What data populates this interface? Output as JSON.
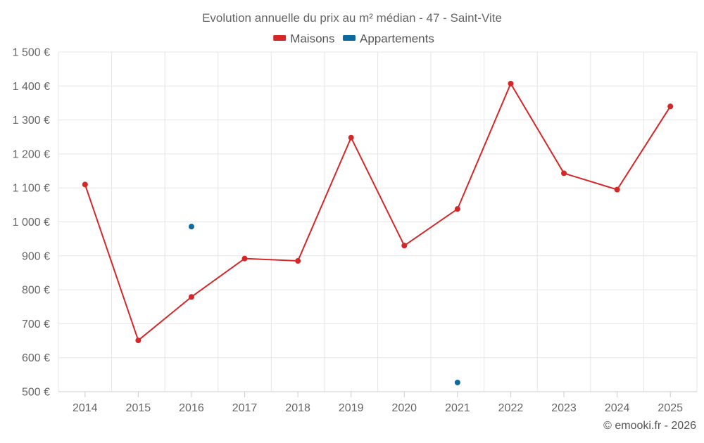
{
  "chart_data": {
    "type": "line",
    "title": "Evolution annuelle du prix au m² médian - 47 - Saint-Vite",
    "categories": [
      "2014",
      "2015",
      "2016",
      "2017",
      "2018",
      "2019",
      "2020",
      "2021",
      "2022",
      "2023",
      "2024",
      "2025"
    ],
    "series": [
      {
        "name": "Maisons",
        "color": "#d62728",
        "values": [
          1110,
          651,
          779,
          892,
          885,
          1248,
          930,
          1038,
          1407,
          1143,
          1095,
          1340
        ]
      },
      {
        "name": "Appartements",
        "color": "#0d6aa0",
        "values": [
          null,
          null,
          986,
          null,
          null,
          null,
          null,
          527,
          null,
          null,
          null,
          null
        ]
      }
    ],
    "yticks": [
      "500 €",
      "600 €",
      "700 €",
      "800 €",
      "900 €",
      "1 000 €",
      "1 100 €",
      "1 200 €",
      "1 300 €",
      "1 400 €",
      "1 500 €"
    ],
    "ylim": [
      500,
      1500
    ],
    "xlabel": "",
    "ylabel": "",
    "grid": true,
    "legend_position": "top-center"
  },
  "credit": "© emooki.fr - 2026"
}
